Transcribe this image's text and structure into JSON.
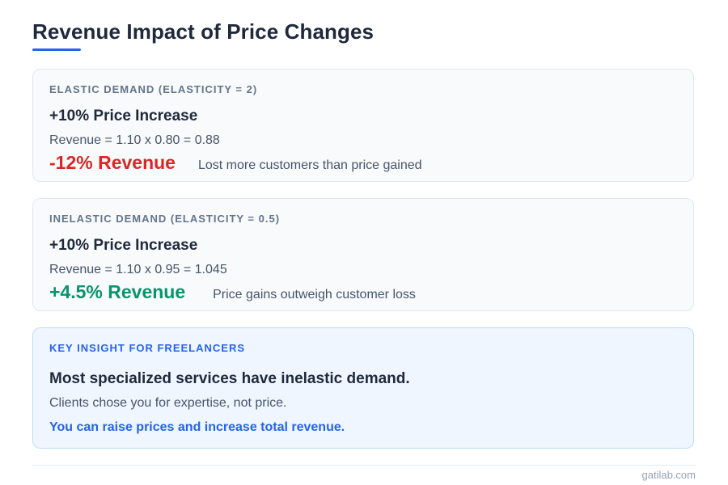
{
  "page": {
    "title": "Revenue Impact of Price Changes",
    "accent_color": "#2563eb"
  },
  "scenarios": [
    {
      "label": "ELASTIC DEMAND (ELASTICITY = 2)",
      "heading": "+10% Price Increase",
      "formula": "Revenue = 1.10 x 0.80 = 0.88",
      "result": "-12% Revenue",
      "result_color": "#dc2626",
      "note": "Lost more customers than price gained"
    },
    {
      "label": "INELASTIC DEMAND (ELASTICITY = 0.5)",
      "heading": "+10% Price Increase",
      "formula": "Revenue = 1.10 x 0.95 = 1.045",
      "result": "+4.5% Revenue",
      "result_color": "#059669",
      "note": "Price gains outweigh customer loss"
    }
  ],
  "insight": {
    "label": "KEY INSIGHT FOR FREELANCERS",
    "heading": "Most specialized services have inelastic demand.",
    "sub": "Clients chose you for expertise, not price.",
    "cta": "You can raise prices and increase total revenue."
  },
  "footer": {
    "credit": "gatilab.com"
  }
}
